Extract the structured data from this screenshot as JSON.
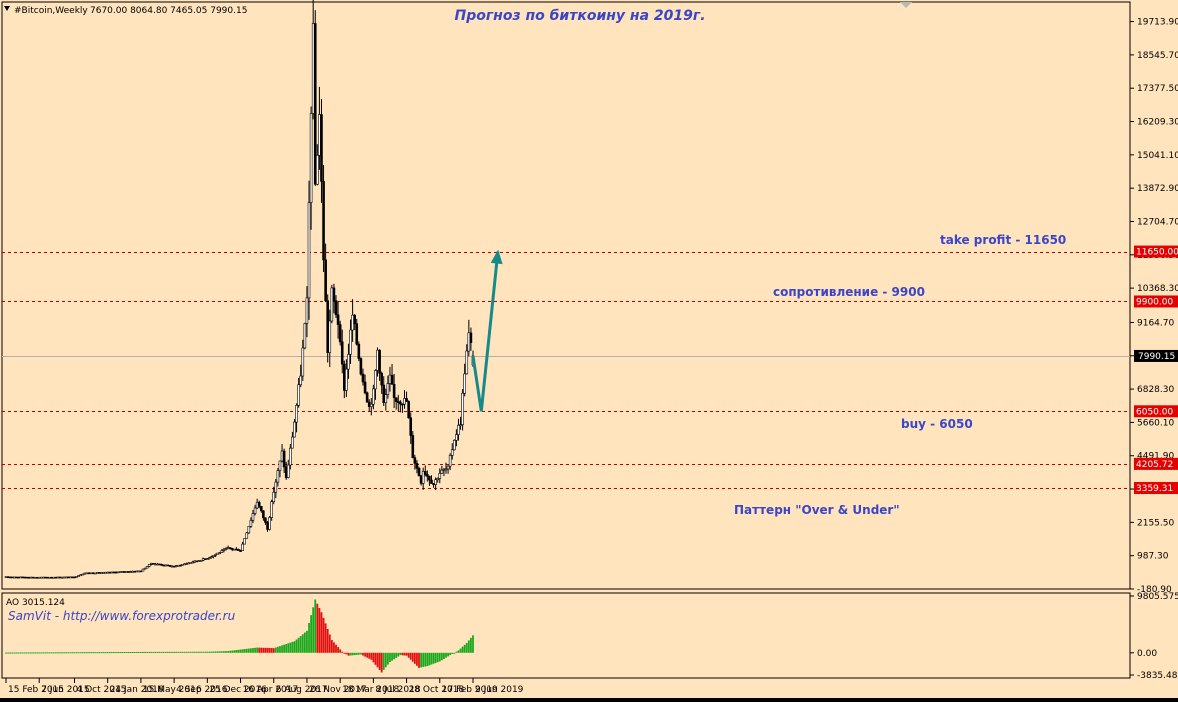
{
  "window": {
    "symbol_label": "#Bitcoin,Weekly",
    "ohlc": "7670.00 8064.80 7465.05 7990.15",
    "title": "Прогноз по биткоину на 2019г."
  },
  "colors": {
    "background": "#FFE4BE",
    "frame": "#000000",
    "candle_bull_fill": "#FFFFFF",
    "candle_bear_fill": "#000000",
    "level_line": "#C00000",
    "level_badge": "#E60000",
    "current_line": "#B0B0B0",
    "annotation_text": "#3A45C8",
    "arrow": "#168A88",
    "ao_up": "#1CA81C",
    "ao_down": "#E01010"
  },
  "chart_data": [
    {
      "type": "candlestick",
      "timeframe": "Weekly",
      "ylim": [
        -180.9,
        20400
      ],
      "y_ticks": [
        "19713.90",
        "18545.70",
        "17377.50",
        "16209.30",
        "15041.10",
        "13872.90",
        "12704.70",
        "11536.50",
        "10368.30",
        "9164.70",
        "7996.50",
        "6828.30",
        "5660.10",
        "4491.90",
        "3323.70",
        "2155.50",
        "987.30",
        "-180.90"
      ],
      "x_ticks": [
        "15 Feb 2015",
        "7 Jun 2015",
        "4 Oct 2015",
        "24 Jan 2016",
        "15 May 2016",
        "4 Sep 2016",
        "25 Dec 2016",
        "16 Apr 2017",
        "6 Aug 2017",
        "26 Nov 2017",
        "18 Mar 2018",
        "8 Jul 2018",
        "28 Oct 2018",
        "17 Feb 2019",
        "9 Jun 2019"
      ],
      "anchors": [
        {
          "date": "2015-02-15",
          "close": 245
        },
        {
          "date": "2015-06-07",
          "close": 230
        },
        {
          "date": "2015-10-04",
          "close": 240
        },
        {
          "date": "2015-11-08",
          "close": 380
        },
        {
          "date": "2016-01-24",
          "close": 400
        },
        {
          "date": "2016-05-15",
          "close": 455
        },
        {
          "date": "2016-06-19",
          "close": 720
        },
        {
          "date": "2016-09-04",
          "close": 610
        },
        {
          "date": "2016-12-25",
          "close": 900
        },
        {
          "date": "2017-03-05",
          "close": 1250
        },
        {
          "date": "2017-04-16",
          "close": 1180
        },
        {
          "date": "2017-06-11",
          "close": 2900
        },
        {
          "date": "2017-07-16",
          "close": 1950
        },
        {
          "date": "2017-08-06",
          "close": 3250
        },
        {
          "date": "2017-09-03",
          "close": 4600
        },
        {
          "date": "2017-09-17",
          "close": 3700
        },
        {
          "date": "2017-10-15",
          "close": 5700
        },
        {
          "date": "2017-11-05",
          "close": 7400
        },
        {
          "date": "2017-11-26",
          "close": 9800
        },
        {
          "date": "2017-12-10",
          "close": 16800
        },
        {
          "date": "2017-12-17",
          "close": 19200
        },
        {
          "date": "2017-12-24",
          "close": 14000
        },
        {
          "date": "2018-01-07",
          "close": 16500
        },
        {
          "date": "2018-01-21",
          "close": 11500
        },
        {
          "date": "2018-02-04",
          "close": 8200
        },
        {
          "date": "2018-02-18",
          "close": 10200
        },
        {
          "date": "2018-03-11",
          "close": 9200
        },
        {
          "date": "2018-03-18",
          "close": 8300
        },
        {
          "date": "2018-04-01",
          "close": 6900
        },
        {
          "date": "2018-04-29",
          "close": 9400
        },
        {
          "date": "2018-05-27",
          "close": 7500
        },
        {
          "date": "2018-06-24",
          "close": 6200
        },
        {
          "date": "2018-07-08",
          "close": 6700
        },
        {
          "date": "2018-07-22",
          "close": 8200
        },
        {
          "date": "2018-08-12",
          "close": 6300
        },
        {
          "date": "2018-09-02",
          "close": 7200
        },
        {
          "date": "2018-09-16",
          "close": 6500
        },
        {
          "date": "2018-10-28",
          "close": 6400
        },
        {
          "date": "2018-11-18",
          "close": 4500
        },
        {
          "date": "2018-12-16",
          "close": 3600
        },
        {
          "date": "2018-12-23",
          "close": 4000
        },
        {
          "date": "2019-01-27",
          "close": 3500
        },
        {
          "date": "2019-02-17",
          "close": 3900
        },
        {
          "date": "2019-03-17",
          "close": 4050
        },
        {
          "date": "2019-04-07",
          "close": 5100
        },
        {
          "date": "2019-04-28",
          "close": 5700
        },
        {
          "date": "2019-05-12",
          "close": 7500
        },
        {
          "date": "2019-05-26",
          "close": 8700
        },
        {
          "date": "2019-06-09",
          "close": 7990.15
        }
      ],
      "levels": [
        {
          "value": 11650.0,
          "label": "11650.00"
        },
        {
          "value": 9900.0,
          "label": "9900.00"
        },
        {
          "value": 6050.0,
          "label": "6050.00"
        },
        {
          "value": 4205.72,
          "label": "4205.72"
        },
        {
          "value": 3359.31,
          "label": "3359.31"
        }
      ],
      "current_price": {
        "value": 7990.15,
        "label": "7990.15"
      },
      "annotations": [
        {
          "text": "take profit - 11650"
        },
        {
          "text": "сопротивление - 9900"
        },
        {
          "text": "buy - 6050"
        },
        {
          "text": "Паттерн \"Over & Under\""
        }
      ],
      "forecast_path": [
        {
          "date": "2019-06-09",
          "value": 7990.15
        },
        {
          "date": "2019-07-07",
          "value": 6050
        },
        {
          "date": "2019-09-01",
          "value": 11650
        }
      ]
    },
    {
      "type": "bar",
      "indicator": "AO",
      "label": "AO 3015.124",
      "note": "SamVit - http://www.forexprotrader.ru",
      "ylim": [
        -3835.489,
        9805.575
      ],
      "y_ticks": [
        "9805.575",
        "0.00",
        "-3835.489"
      ],
      "values_anchors": [
        {
          "date": "2015-02-15",
          "value": 40
        },
        {
          "date": "2016-06-19",
          "value": 150
        },
        {
          "date": "2016-12-25",
          "value": 180
        },
        {
          "date": "2017-03-05",
          "value": 300
        },
        {
          "date": "2017-06-11",
          "value": 900
        },
        {
          "date": "2017-08-06",
          "value": 800
        },
        {
          "date": "2017-10-15",
          "value": 2000
        },
        {
          "date": "2017-11-26",
          "value": 3800
        },
        {
          "date": "2017-12-24",
          "value": 9200
        },
        {
          "date": "2018-01-14",
          "value": 7000
        },
        {
          "date": "2018-02-18",
          "value": 2200
        },
        {
          "date": "2018-03-25",
          "value": 200
        },
        {
          "date": "2018-04-15",
          "value": -500
        },
        {
          "date": "2018-05-27",
          "value": -300
        },
        {
          "date": "2018-07-01",
          "value": -1200
        },
        {
          "date": "2018-08-05",
          "value": -3400
        },
        {
          "date": "2018-09-02",
          "value": -1600
        },
        {
          "date": "2018-10-07",
          "value": -400
        },
        {
          "date": "2018-10-28",
          "value": -500
        },
        {
          "date": "2018-12-09",
          "value": -2600
        },
        {
          "date": "2019-01-06",
          "value": -2300
        },
        {
          "date": "2019-02-17",
          "value": -1500
        },
        {
          "date": "2019-03-24",
          "value": -400
        },
        {
          "date": "2019-04-21",
          "value": 400
        },
        {
          "date": "2019-05-19",
          "value": 1700
        },
        {
          "date": "2019-06-09",
          "value": 3015.124
        }
      ]
    }
  ]
}
